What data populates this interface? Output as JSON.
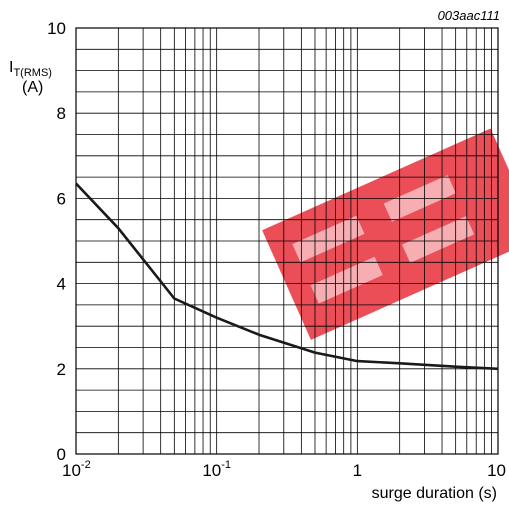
{
  "chart_data": {
    "type": "line",
    "code": "003aac111",
    "xlabel": "surge duration (s)",
    "ylabel": {
      "main": "I",
      "sub": "T(RMS)",
      "unit": "(A)"
    },
    "xscale": "log",
    "xlim": [
      0.01,
      10
    ],
    "ylim": [
      0,
      10
    ],
    "xticks": [
      {
        "base": "10",
        "exp": "-2",
        "value": 0.01
      },
      {
        "base": "10",
        "exp": "-1",
        "value": 0.1
      },
      {
        "base": "1",
        "exp": "",
        "value": 1
      },
      {
        "base": "10",
        "exp": "",
        "value": 10
      }
    ],
    "yticks": [
      "0",
      "2",
      "4",
      "6",
      "8",
      "10"
    ],
    "grid": true,
    "series": [
      {
        "color": "#1a1a1a",
        "x": [
          0.01,
          0.02,
          0.05,
          0.1,
          0.2,
          0.5,
          1,
          2,
          5,
          10
        ],
        "y": [
          6.35,
          5.3,
          3.65,
          3.2,
          2.8,
          2.38,
          2.18,
          2.13,
          2.05,
          2.0
        ]
      }
    ],
    "watermark_color": "#e8303a"
  }
}
